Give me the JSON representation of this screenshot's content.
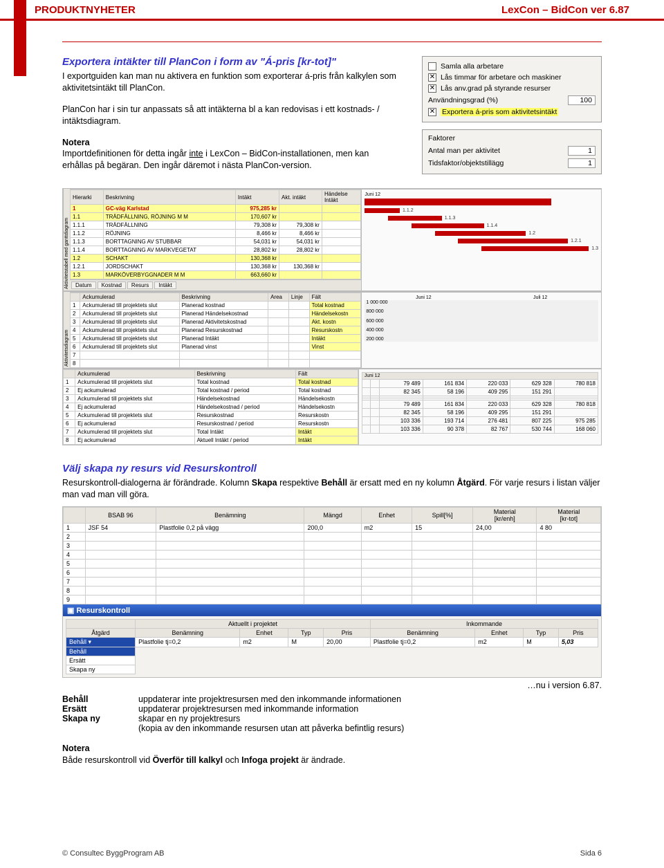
{
  "header": {
    "left": "PRODUKTNYHETER",
    "right": "LexCon – BidCon  ver 6.87"
  },
  "section1": {
    "title": "Exportera intäkter till PlanCon i form av \"Á-pris [kr-tot]\"",
    "p1": "I exportguiden kan man nu aktivera en funktion som exporterar á-pris från kalkylen som aktivitetsintäkt till PlanCon.",
    "p2": "PlanCon har i sin tur anpassats så att intäkterna bl a kan redovisas i ett kostnads- / intäktsdiagram.",
    "notera": "Notera",
    "p3a": "Importdefinitionen för detta ingår ",
    "p3u": "inte",
    "p3b": " i LexCon – BidCon-installationen, men kan erhållas på begäran. Den ingår däremot i nästa PlanCon-version."
  },
  "panel1": {
    "cb1": "Samla alla arbetare",
    "cb2": "Lås timmar för arbetare och maskiner",
    "cb3": "Lås anv.grad på styrande resurser",
    "lbl_grad": "Användningsgrad (%)",
    "val_grad": "100",
    "cb4": "Exportera á-pris som aktivitetsintäkt"
  },
  "panel2": {
    "title": "Faktorer",
    "r1": "Antal man per aktivitet",
    "v1": "1",
    "r2": "Tidsfaktor/objektstillägg",
    "v2": "1"
  },
  "topTable": {
    "cols": [
      "Hierarki",
      "Beskrivning",
      "Intäkt",
      "Akt. intäkt",
      "Händelse\nIntäkt"
    ],
    "rows": [
      [
        "1",
        "GC-väg Karlstad",
        "975,285 kr",
        "",
        ""
      ],
      [
        "1.1",
        "TRÄDFÄLLNING, RÖJNING M M",
        "170,607 kr",
        "",
        ""
      ],
      [
        "1.1.1",
        "TRÄDFÄLLNING",
        "79,308 kr",
        "79,308 kr",
        ""
      ],
      [
        "1.1.2",
        "RÖJNING",
        "8,466 kr",
        "8,466 kr",
        ""
      ],
      [
        "1.1.3",
        "BORTTAGNING AV STUBBAR",
        "54,031 kr",
        "54,031 kr",
        ""
      ],
      [
        "1.1.4",
        "BORTTAGNING AV MARKVEGETAT",
        "28,802 kr",
        "28,802 kr",
        ""
      ],
      [
        "1.2",
        "SCHAKT",
        "130,368 kr",
        "",
        ""
      ],
      [
        "1.2.1",
        "JORDSCHAKT",
        "130,368 kr",
        "130,368 kr",
        ""
      ],
      [
        "1.3",
        "MARKÖVERBYGGNADER M M",
        "663,660 kr",
        "",
        ""
      ]
    ],
    "yellowRows": [
      0,
      1,
      6,
      8
    ],
    "tabs": [
      "Datum",
      "Kostnad",
      "Resurs",
      "Intäkt"
    ],
    "vlabel": "Aktivitetstabell med ganttdiagram",
    "ganttLabels": [
      "1.1.2",
      "1.1.3",
      "1.1.4",
      "1.2",
      "1.2.1",
      "1.3"
    ]
  },
  "midTable": {
    "cols": [
      "",
      "Ackumulerad",
      "Beskrivning",
      "Area",
      "Linje",
      "Fält"
    ],
    "rows": [
      [
        "1",
        "Ackumulerad till projektets slut",
        "Planerad kostnad",
        "",
        "",
        "Total kostnad"
      ],
      [
        "2",
        "Ackumulerad till projektets slut",
        "Planerad Händelsekostnad",
        "",
        "",
        "Händelsekostn"
      ],
      [
        "3",
        "Ackumulerad till projektets slut",
        "Planerad Aktivitetskostnad",
        "",
        "",
        "Akt. kostn"
      ],
      [
        "4",
        "Ackumulerad till projektets slut",
        "Planerad Resurskostnad",
        "",
        "",
        "Resurskostn"
      ],
      [
        "5",
        "Ackumulerad till projektets slut",
        "Planerad Intäkt",
        "",
        "",
        "Intäkt"
      ],
      [
        "6",
        "Ackumulerad till projektets slut",
        "Planerad vinst",
        "",
        "",
        "Vinst"
      ],
      [
        "7",
        "",
        "",
        "",
        "",
        ""
      ],
      [
        "8",
        "",
        "",
        "",
        "",
        ""
      ]
    ],
    "vlabel": "Aktivitetsdiagram",
    "yaxis": [
      "1 000 000",
      "800 000",
      "600 000",
      "400 000",
      "200 000"
    ],
    "months": [
      "Juni 12",
      "Juli 12"
    ]
  },
  "botTable": {
    "cols": [
      "",
      "Ackumulerad",
      "Beskrivning",
      "Fält"
    ],
    "rows": [
      [
        "1",
        "Ackumulerad till projektets slut",
        "Total kostnad",
        "Total kostnad"
      ],
      [
        "2",
        "Ej ackumulerad",
        "Total kostnad / period",
        "Total kostnad"
      ],
      [
        "3",
        "Ackumulerad till projektets slut",
        "Händelsekostnad",
        "Händelsekostn"
      ],
      [
        "4",
        "Ej ackumulerad",
        "Händelsekostnad / period",
        "Händelsekostn"
      ],
      [
        "5",
        "Ackumulerad till projektets slut",
        "Resurskostnad",
        "Resurskostn"
      ],
      [
        "6",
        "Ej ackumulerad",
        "Resurskostnad / period",
        "Resurskostn"
      ],
      [
        "7",
        "Ackumulerad till projektets slut",
        "Total Intäkt",
        "Intäkt"
      ],
      [
        "8",
        "Ej ackumulerad",
        "Aktuell Intäkt / period",
        "Intäkt"
      ]
    ],
    "dataCols": [
      "",
      "",
      "",
      "",
      "",
      "",
      ""
    ],
    "dataRows": [
      [
        "",
        "",
        "79 489",
        "161 834",
        "220 033",
        "629 328",
        "780 818"
      ],
      [
        "",
        "",
        "82 345",
        "58 196",
        "409 295",
        "151 291",
        ""
      ],
      [
        "",
        "",
        "",
        "",
        "",
        "",
        ""
      ],
      [
        "",
        "",
        "",
        "",
        "",
        "",
        ""
      ],
      [
        "",
        "",
        "79 489",
        "161 834",
        "220 033",
        "629 328",
        "780 818"
      ],
      [
        "",
        "",
        "82 345",
        "58 196",
        "409 295",
        "151 291",
        ""
      ],
      [
        "",
        "",
        "103 336",
        "193 714",
        "276 481",
        "807 225",
        "975 285"
      ],
      [
        "",
        "",
        "103 336",
        "90 378",
        "82 767",
        "530 744",
        "168 060"
      ]
    ]
  },
  "section2": {
    "title": "Välj skapa ny resurs vid Resurskontroll",
    "p1a": "Resurskontroll-dialogerna är förändrade. Kolumn ",
    "b1": "Skapa",
    "p1b": " respektive ",
    "b2": "Behåll",
    "p1c": " är ersatt med en ny kolumn ",
    "b3": "Åtgärd",
    "p1d": ". För varje resurs i listan väljer man vad man vill göra.",
    "right_note": "…nu i version 6.87.",
    "behall": "Behåll",
    "behall_txt": "uppdaterar inte projektresursen med den inkommande informationen",
    "ersatt": "Ersätt",
    "ersatt_txt": "uppdaterar projektresursen med inkommande information",
    "skapany": "Skapa ny",
    "skapany_txt": "skapar en ny projektresurs",
    "skapany_txt2": "(kopia av den inkommande resursen utan att påverka befintlig resurs)",
    "notera": "Notera",
    "p2a": "Både resurskontroll vid ",
    "b4": "Överför till kalkyl",
    "p2b": " och ",
    "b5": "Infoga projekt",
    "p2c": " är ändrade."
  },
  "resursGrid": {
    "topCols": [
      "",
      "BSAB 96",
      "Benämning",
      "Mängd",
      "Enhet",
      "Spill[%]",
      "Material\n[kr/enh]",
      "Material\n[kr-tot]"
    ],
    "topRow": [
      "1",
      "JSF 54",
      "Plastfolie 0,2 på vägg",
      "200,0",
      "m2",
      "15",
      "24,00",
      "4 80"
    ],
    "winTitle": "Resurskontroll",
    "grp1": "Aktuellt i projektet",
    "grp2": "Inkommande",
    "cols": [
      "Åtgärd",
      "Benämning",
      "Enhet",
      "Typ",
      "Pris",
      "Benämning",
      "Enhet",
      "Typ",
      "Pris"
    ],
    "row": [
      "Behåll",
      "Plastfolie tj=0,2",
      "m2",
      "M",
      "20,00",
      "Plastfolie tj=0,2",
      "m2",
      "M",
      "5,03"
    ],
    "dropdown": [
      "Behåll",
      "Ersätt",
      "Skapa ny"
    ]
  },
  "footer": {
    "left": "© Consultec ByggProgram AB",
    "right": "Sida 6"
  }
}
